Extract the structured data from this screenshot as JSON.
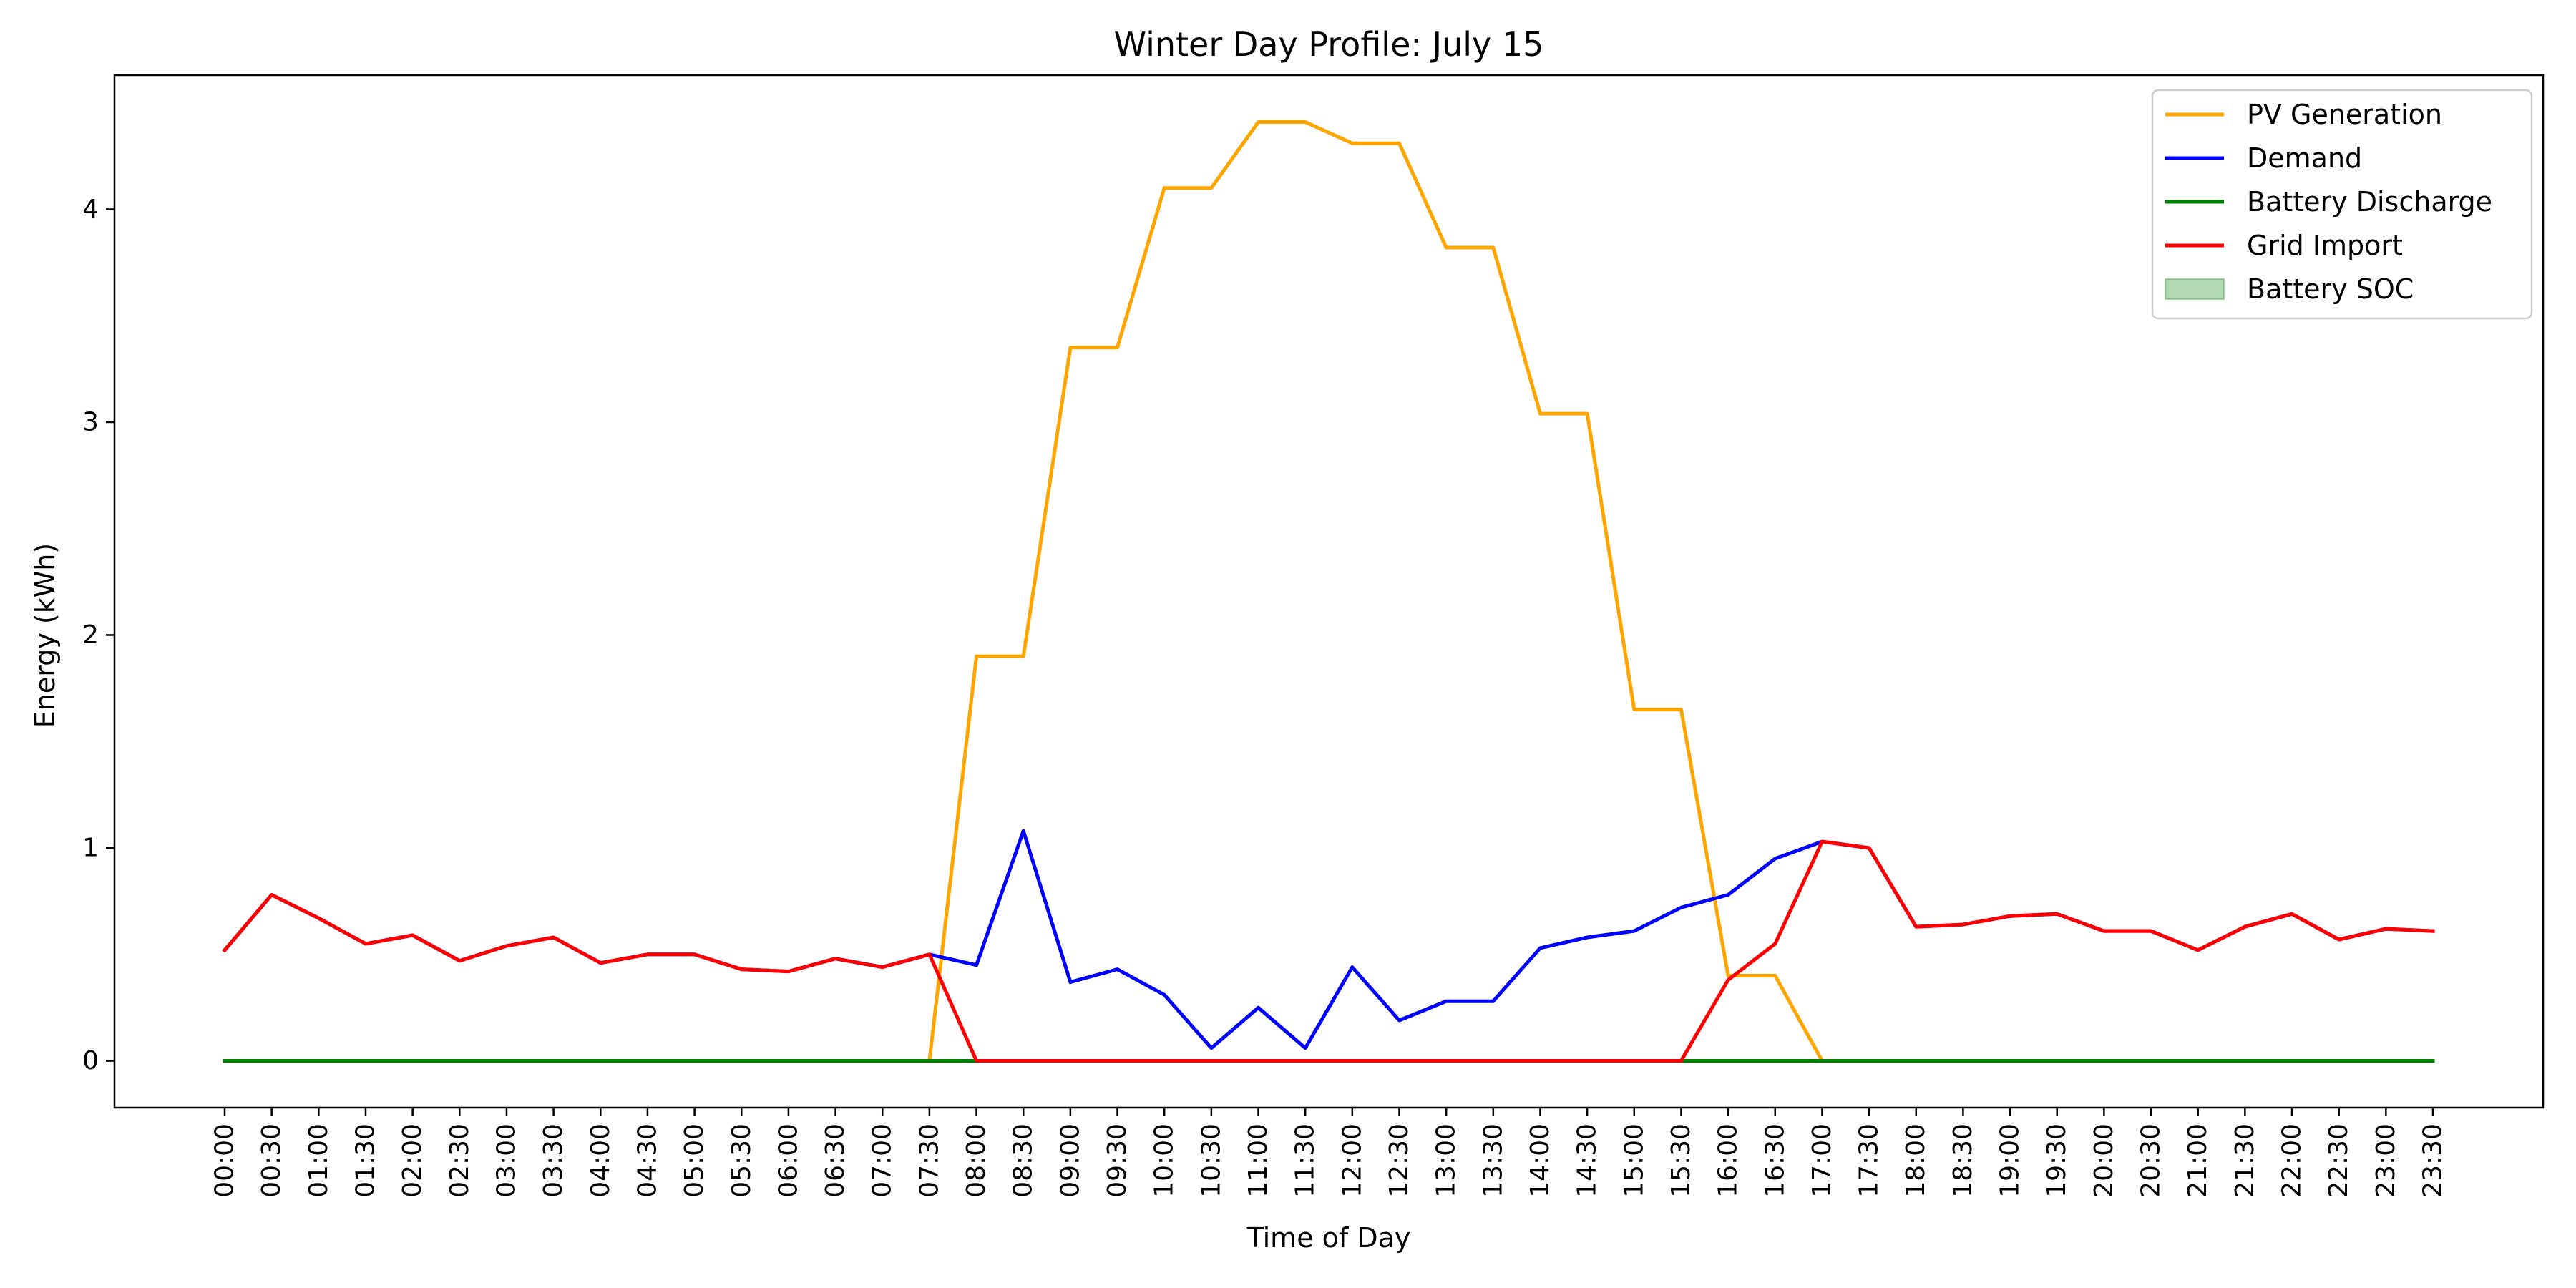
{
  "chart_data": {
    "type": "line",
    "title": "Winter Day Profile: July 15",
    "xlabel": "Time of Day",
    "ylabel": "Energy (kWh)",
    "ylim": [
      -0.22,
      4.63
    ],
    "yticks": [
      0,
      1,
      2,
      3,
      4
    ],
    "categories": [
      "00:00",
      "00:30",
      "01:00",
      "01:30",
      "02:00",
      "02:30",
      "03:00",
      "03:30",
      "04:00",
      "04:30",
      "05:00",
      "05:30",
      "06:00",
      "06:30",
      "07:00",
      "07:30",
      "08:00",
      "08:30",
      "09:00",
      "09:30",
      "10:00",
      "10:30",
      "11:00",
      "11:30",
      "12:00",
      "12:30",
      "13:00",
      "13:30",
      "14:00",
      "14:30",
      "15:00",
      "15:30",
      "16:00",
      "16:30",
      "17:00",
      "17:30",
      "18:00",
      "18:30",
      "19:00",
      "19:30",
      "20:00",
      "20:30",
      "21:00",
      "21:30",
      "22:00",
      "22:30",
      "23:00",
      "23:30"
    ],
    "grid": false,
    "legend_position": "top-right",
    "series": [
      {
        "name": "PV Generation",
        "color": "#ffa500",
        "values": [
          0,
          0,
          0,
          0,
          0,
          0,
          0,
          0,
          0,
          0,
          0,
          0,
          0,
          0,
          0,
          0,
          1.9,
          1.9,
          3.35,
          3.35,
          4.1,
          4.1,
          4.41,
          4.41,
          4.31,
          4.31,
          3.82,
          3.82,
          3.04,
          3.04,
          1.65,
          1.65,
          0.4,
          0.4,
          0,
          0,
          0,
          0,
          0,
          0,
          0,
          0,
          0,
          0,
          0,
          0,
          0,
          0
        ]
      },
      {
        "name": "Demand",
        "color": "#0000ff",
        "values": [
          0.52,
          0.78,
          0.67,
          0.55,
          0.59,
          0.47,
          0.54,
          0.58,
          0.46,
          0.5,
          0.5,
          0.43,
          0.42,
          0.48,
          0.44,
          0.5,
          0.45,
          1.08,
          0.37,
          0.43,
          0.31,
          0.06,
          0.25,
          0.06,
          0.44,
          0.19,
          0.28,
          0.28,
          0.53,
          0.58,
          0.61,
          0.72,
          0.78,
          0.95,
          1.03,
          1.0,
          0.63,
          0.64,
          0.68,
          0.69,
          0.61,
          0.61,
          0.52,
          0.63,
          0.69,
          0.57,
          0.62,
          0.61
        ]
      },
      {
        "name": "Battery Discharge",
        "color": "#008000",
        "values": [
          0,
          0,
          0,
          0,
          0,
          0,
          0,
          0,
          0,
          0,
          0,
          0,
          0,
          0,
          0,
          0,
          0,
          0,
          0,
          0,
          0,
          0,
          0,
          0,
          0,
          0,
          0,
          0,
          0,
          0,
          0,
          0,
          0,
          0,
          0,
          0,
          0,
          0,
          0,
          0,
          0,
          0,
          0,
          0,
          0,
          0,
          0,
          0
        ]
      },
      {
        "name": "Grid Import",
        "color": "#ff0000",
        "values": [
          0.52,
          0.78,
          0.67,
          0.55,
          0.59,
          0.47,
          0.54,
          0.58,
          0.46,
          0.5,
          0.5,
          0.43,
          0.42,
          0.48,
          0.44,
          0.5,
          0,
          0,
          0,
          0,
          0,
          0,
          0,
          0,
          0,
          0,
          0,
          0,
          0,
          0,
          0,
          0,
          0.38,
          0.55,
          1.03,
          1.0,
          0.63,
          0.64,
          0.68,
          0.69,
          0.61,
          0.61,
          0.52,
          0.63,
          0.69,
          0.57,
          0.62,
          0.61
        ]
      }
    ],
    "legend": [
      {
        "label": "PV Generation",
        "kind": "line",
        "color": "#ffa500"
      },
      {
        "label": "Demand",
        "kind": "line",
        "color": "#0000ff"
      },
      {
        "label": "Battery Discharge",
        "kind": "line",
        "color": "#008000"
      },
      {
        "label": "Grid Import",
        "kind": "line",
        "color": "#ff0000"
      },
      {
        "label": "Battery SOC",
        "kind": "patch",
        "color": "#008000"
      }
    ]
  }
}
